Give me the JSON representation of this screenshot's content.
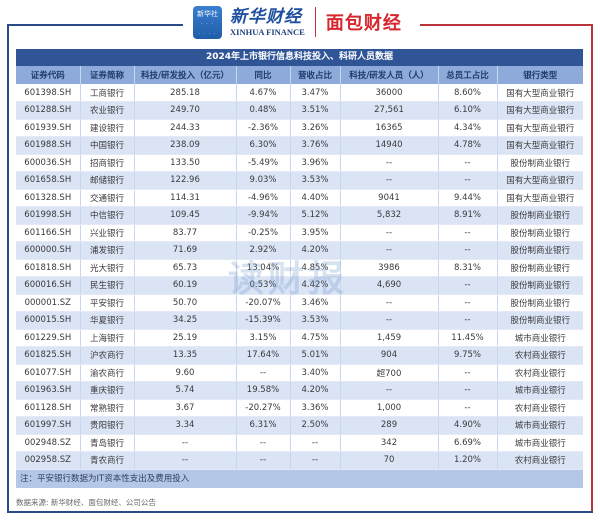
{
  "header": {
    "xinhua_badge": "新华社",
    "xinhua_cn": "新华财经",
    "xinhua_en": "XINHUA FINANCE",
    "partner_logo": "面包财经"
  },
  "table": {
    "title": "2024年上市银行信息科技投入、科研人员数据",
    "columns": [
      "证券代码",
      "证券简称",
      "科技/研发投入（亿元）",
      "同比",
      "营收占比",
      "科技/研发人员（人）",
      "总员工占比",
      "银行类型"
    ],
    "rows": [
      [
        "601398.SH",
        "工商银行",
        "285.18",
        "4.67%",
        "3.47%",
        "36000",
        "8.60%",
        "国有大型商业银行"
      ],
      [
        "601288.SH",
        "农业银行",
        "249.70",
        "0.48%",
        "3.51%",
        "27,561",
        "6.10%",
        "国有大型商业银行"
      ],
      [
        "601939.SH",
        "建设银行",
        "244.33",
        "-2.36%",
        "3.26%",
        "16365",
        "4.34%",
        "国有大型商业银行"
      ],
      [
        "601988.SH",
        "中国银行",
        "238.09",
        "6.30%",
        "3.76%",
        "14940",
        "4.78%",
        "国有大型商业银行"
      ],
      [
        "600036.SH",
        "招商银行",
        "133.50",
        "-5.49%",
        "3.96%",
        "--",
        "--",
        "股份制商业银行"
      ],
      [
        "601658.SH",
        "邮储银行",
        "122.96",
        "9.03%",
        "3.53%",
        "--",
        "--",
        "国有大型商业银行"
      ],
      [
        "601328.SH",
        "交通银行",
        "114.31",
        "-4.96%",
        "4.40%",
        "9041",
        "9.44%",
        "国有大型商业银行"
      ],
      [
        "601998.SH",
        "中信银行",
        "109.45",
        "-9.94%",
        "5.12%",
        "5,832",
        "8.91%",
        "股份制商业银行"
      ],
      [
        "601166.SH",
        "兴业银行",
        "83.77",
        "-0.25%",
        "3.95%",
        "--",
        "--",
        "股份制商业银行"
      ],
      [
        "600000.SH",
        "浦发银行",
        "71.69",
        "2.92%",
        "4.20%",
        "--",
        "--",
        "股份制商业银行"
      ],
      [
        "601818.SH",
        "光大银行",
        "65.73",
        "13.04%",
        "4.85%",
        "3986",
        "8.31%",
        "股份制商业银行"
      ],
      [
        "600016.SH",
        "民生银行",
        "60.19",
        "0.53%",
        "4.42%",
        "4,690",
        "--",
        "股份制商业银行"
      ],
      [
        "000001.SZ",
        "平安银行",
        "50.70",
        "-20.07%",
        "3.46%",
        "--",
        "--",
        "股份制商业银行"
      ],
      [
        "600015.SH",
        "华夏银行",
        "34.25",
        "-15.39%",
        "3.53%",
        "--",
        "--",
        "股份制商业银行"
      ],
      [
        "601229.SH",
        "上海银行",
        "25.19",
        "3.15%",
        "4.75%",
        "1,459",
        "11.45%",
        "城市商业银行"
      ],
      [
        "601825.SH",
        "沪农商行",
        "13.35",
        "17.64%",
        "5.01%",
        "904",
        "9.75%",
        "农村商业银行"
      ],
      [
        "601077.SH",
        "渝农商行",
        "9.60",
        "--",
        "3.40%",
        "超700",
        "--",
        "农村商业银行"
      ],
      [
        "601963.SH",
        "重庆银行",
        "5.74",
        "19.58%",
        "4.20%",
        "--",
        "--",
        "城市商业银行"
      ],
      [
        "601128.SH",
        "常熟银行",
        "3.67",
        "-20.27%",
        "3.36%",
        "1,000",
        "--",
        "农村商业银行"
      ],
      [
        "601997.SH",
        "贵阳银行",
        "3.34",
        "6.31%",
        "2.50%",
        "289",
        "4.90%",
        "城市商业银行"
      ],
      [
        "002948.SZ",
        "青岛银行",
        "--",
        "--",
        "--",
        "342",
        "6.69%",
        "城市商业银行"
      ],
      [
        "002958.SZ",
        "青农商行",
        "--",
        "--",
        "--",
        "70",
        "1.20%",
        "农村商业银行"
      ]
    ],
    "note": "注：平安银行数据为IT资本性支出及费用投入"
  },
  "source": "数据来源: 新华财经、面包财经、公司公告",
  "watermark": "读财报",
  "colors": {
    "title_bar": "#2f5597",
    "header_row": "#8eaadb",
    "stripe": "#dae4f5",
    "note_row": "#b4c7e7",
    "frame_blue": "#2a4a8a",
    "frame_red": "#b8333a"
  }
}
